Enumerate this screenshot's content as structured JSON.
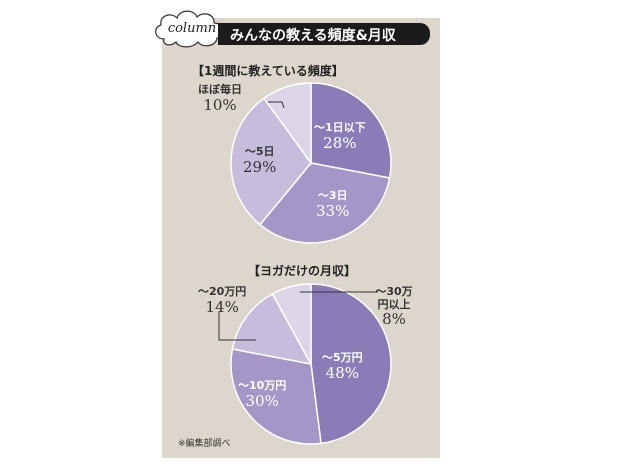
{
  "column_label": "column",
  "header_title": "みんなの教える頻度&月収",
  "footnote": "※編集部調べ",
  "colors": {
    "panel_bg": "#ddd6cc",
    "header_bg": "#1b1b1b",
    "slice_dark": "#8a7cb6",
    "slice_mid": "#a496c7",
    "slice_light": "#c6bcdc",
    "slice_pale": "#dcd5e8",
    "outline": "#ffffff"
  },
  "chart_data": [
    {
      "type": "pie",
      "title": "【1週間に教えている頻度】",
      "slices": [
        {
          "label": "〜1日以下",
          "value": 28,
          "value_text": "28%",
          "color": "#8a7cb6"
        },
        {
          "label": "〜3日",
          "value": 33,
          "value_text": "33%",
          "color": "#a496c7"
        },
        {
          "label": "〜5日",
          "value": 29,
          "value_text": "29%",
          "color": "#c6bcdc"
        },
        {
          "label": "ほぼ毎日",
          "value": 10,
          "value_text": "10%",
          "color": "#dcd5e8"
        }
      ]
    },
    {
      "type": "pie",
      "title": "【ヨガだけの月収】",
      "slices": [
        {
          "label": "〜5万円",
          "value": 48,
          "value_text": "48%",
          "color": "#8a7cb6"
        },
        {
          "label": "〜10万円",
          "value": 30,
          "value_text": "30%",
          "color": "#a496c7"
        },
        {
          "label": "〜20万円",
          "value": 14,
          "value_text": "14%",
          "color": "#c6bcdc"
        },
        {
          "label": "〜30万円以上",
          "value": 8,
          "value_text": "8%",
          "color": "#dcd5e8"
        }
      ]
    }
  ]
}
